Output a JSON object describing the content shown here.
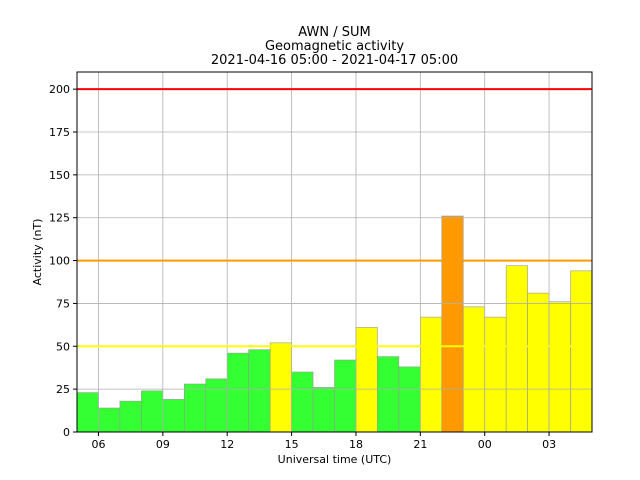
{
  "chart_data": {
    "type": "bar",
    "title": [
      "AWN / SUM",
      "Geomagnetic activity",
      "2021-04-16 05:00 - 2021-04-17 05:00"
    ],
    "xlabel": "Universal time (UTC)",
    "ylabel": "Activity (nT)",
    "ylim": [
      0,
      210
    ],
    "yticks": [
      0,
      25,
      50,
      75,
      100,
      125,
      150,
      175,
      200
    ],
    "xlim": [
      5,
      29
    ],
    "xticks": [
      {
        "hour": 6,
        "label": "06"
      },
      {
        "hour": 9,
        "label": "09"
      },
      {
        "hour": 12,
        "label": "12"
      },
      {
        "hour": 15,
        "label": "15"
      },
      {
        "hour": 18,
        "label": "18"
      },
      {
        "hour": 21,
        "label": "21"
      },
      {
        "hour": 24,
        "label": "00"
      },
      {
        "hour": 27,
        "label": "03"
      }
    ],
    "grid": true,
    "bars": [
      {
        "hour": 5,
        "value": 23,
        "color": "#33ff33"
      },
      {
        "hour": 6,
        "value": 14,
        "color": "#33ff33"
      },
      {
        "hour": 7,
        "value": 18,
        "color": "#33ff33"
      },
      {
        "hour": 8,
        "value": 24,
        "color": "#33ff33"
      },
      {
        "hour": 9,
        "value": 19,
        "color": "#33ff33"
      },
      {
        "hour": 10,
        "value": 28,
        "color": "#33ff33"
      },
      {
        "hour": 11,
        "value": 31,
        "color": "#33ff33"
      },
      {
        "hour": 12,
        "value": 46,
        "color": "#33ff33"
      },
      {
        "hour": 13,
        "value": 48,
        "color": "#33ff33"
      },
      {
        "hour": 14,
        "value": 52,
        "color": "#ffff00"
      },
      {
        "hour": 15,
        "value": 35,
        "color": "#33ff33"
      },
      {
        "hour": 16,
        "value": 26,
        "color": "#33ff33"
      },
      {
        "hour": 17,
        "value": 42,
        "color": "#33ff33"
      },
      {
        "hour": 18,
        "value": 61,
        "color": "#ffff00"
      },
      {
        "hour": 19,
        "value": 44,
        "color": "#33ff33"
      },
      {
        "hour": 20,
        "value": 38,
        "color": "#33ff33"
      },
      {
        "hour": 21,
        "value": 67,
        "color": "#ffff00"
      },
      {
        "hour": 22,
        "value": 126,
        "color": "#ff9900"
      },
      {
        "hour": 23,
        "value": 73,
        "color": "#ffff00"
      },
      {
        "hour": 24,
        "value": 67,
        "color": "#ffff00"
      },
      {
        "hour": 25,
        "value": 97,
        "color": "#ffff00"
      },
      {
        "hour": 26,
        "value": 81,
        "color": "#ffff00"
      },
      {
        "hour": 27,
        "value": 76,
        "color": "#ffff00"
      },
      {
        "hour": 28,
        "value": 94,
        "color": "#ffff00"
      }
    ],
    "threshold_lines": [
      {
        "value": 50,
        "color": "#ffff00"
      },
      {
        "value": 100,
        "color": "#ff9900"
      },
      {
        "value": 200,
        "color": "#ff0000"
      }
    ]
  }
}
